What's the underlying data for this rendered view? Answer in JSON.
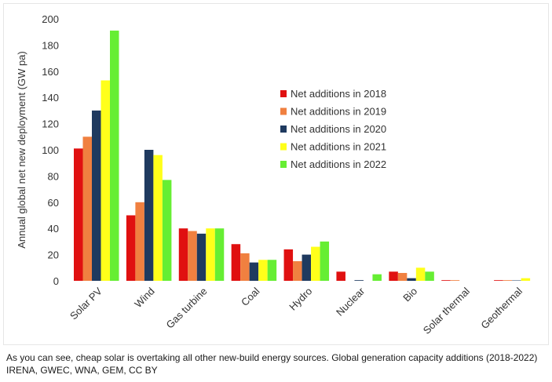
{
  "chart_data": {
    "type": "bar",
    "title": "",
    "xlabel": "",
    "ylabel": "Annual global net new deployment (GW pa)",
    "ylim": [
      0,
      200
    ],
    "yticks": [
      0,
      20,
      40,
      60,
      80,
      100,
      120,
      140,
      160,
      180,
      200
    ],
    "grid": false,
    "legend_position": "center-right",
    "categories": [
      "Solar PV",
      "Wind",
      "Gas turbine",
      "Coal",
      "Hydro",
      "Nuclear",
      "Bio",
      "Solar thermal",
      "Geothermal"
    ],
    "series": [
      {
        "name": "Net additions in 2018",
        "color": "#e01010",
        "values": [
          101,
          50,
          40,
          28,
          24,
          7,
          7,
          0.5,
          0.5
        ]
      },
      {
        "name": "Net additions in 2019",
        "color": "#f08040",
        "values": [
          110,
          60,
          38,
          21,
          15,
          0,
          6,
          0.5,
          0.5
        ]
      },
      {
        "name": "Net additions in 2020",
        "color": "#1f3a5f",
        "values": [
          130,
          100,
          36,
          14,
          20,
          0.5,
          2,
          0,
          0.3
        ]
      },
      {
        "name": "Net additions in 2021",
        "color": "#ffff1a",
        "values": [
          153,
          96,
          40,
          16,
          26,
          0,
          10,
          0,
          2
        ]
      },
      {
        "name": "Net additions in 2022",
        "color": "#66ee33",
        "values": [
          191,
          77,
          40,
          16,
          30,
          5,
          7,
          0,
          0
        ]
      }
    ]
  },
  "caption": {
    "line1": "As you can see, cheap solar is overtaking all other new-build energy sources. Global generation capacity additions (2018-2022)",
    "line2": "IRENA, GWEC, WNA, GEM, CC BY"
  }
}
